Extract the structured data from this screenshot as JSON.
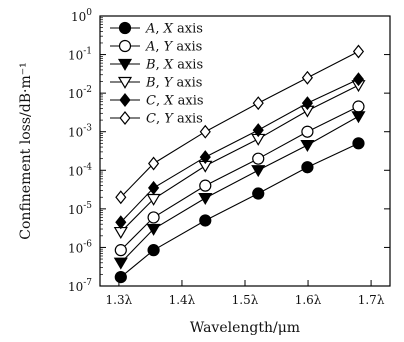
{
  "chart_data": {
    "type": "line",
    "xlabel": "Wavelength/μm",
    "ylabel": "Confinement loss/dB·m⁻¹",
    "x_tick_labels": [
      "1.3λ",
      "1.4λ",
      "1.5λ",
      "1.6λ",
      "1.7λ"
    ],
    "x_ticks": [
      1.3,
      1.4,
      1.5,
      1.6,
      1.7
    ],
    "xlim": [
      1.27,
      1.73
    ],
    "y_scale": "log",
    "ylim": [
      1e-07,
      1
    ],
    "y_tick_exponents": [
      0,
      -1,
      -2,
      -3,
      -4,
      -5,
      -6,
      -7
    ],
    "legend_position": "top-left",
    "grid": false,
    "series": [
      {
        "name": "A, X axis",
        "letter": "A",
        "axis": "X",
        "marker": "circle",
        "filled": true,
        "x": [
          1.303,
          1.355,
          1.437,
          1.521,
          1.599,
          1.68
        ],
        "y": [
          1.7e-07,
          8.5e-07,
          5e-06,
          2.5e-05,
          0.00012,
          0.0005
        ]
      },
      {
        "name": "A, Y axis",
        "letter": "A",
        "axis": "Y",
        "marker": "circle",
        "filled": false,
        "x": [
          1.303,
          1.355,
          1.437,
          1.521,
          1.599,
          1.68
        ],
        "y": [
          8.5e-07,
          6e-06,
          4e-05,
          0.0002,
          0.001,
          0.0045
        ]
      },
      {
        "name": "B, X axis",
        "letter": "B",
        "axis": "X",
        "marker": "triangle-down",
        "filled": true,
        "x": [
          1.303,
          1.355,
          1.437,
          1.521,
          1.599,
          1.68
        ],
        "y": [
          4e-07,
          3e-06,
          1.9e-05,
          0.0001,
          0.00045,
          0.0025
        ]
      },
      {
        "name": "B, Y axis",
        "letter": "B",
        "axis": "Y",
        "marker": "triangle-down",
        "filled": false,
        "x": [
          1.303,
          1.355,
          1.437,
          1.521,
          1.599,
          1.68
        ],
        "y": [
          2.5e-06,
          1.8e-05,
          0.00013,
          0.00065,
          0.0035,
          0.016
        ]
      },
      {
        "name": "C, X axis",
        "letter": "C",
        "axis": "X",
        "marker": "diamond",
        "filled": true,
        "x": [
          1.303,
          1.355,
          1.437,
          1.521,
          1.599,
          1.68
        ],
        "y": [
          4.5e-06,
          3.5e-05,
          0.00022,
          0.0011,
          0.0055,
          0.023
        ]
      },
      {
        "name": "C, Y axis",
        "letter": "C",
        "axis": "Y",
        "marker": "diamond",
        "filled": false,
        "x": [
          1.303,
          1.355,
          1.437,
          1.521,
          1.599,
          1.68
        ],
        "y": [
          2e-05,
          0.00015,
          0.001,
          0.0055,
          0.025,
          0.12
        ]
      }
    ]
  }
}
